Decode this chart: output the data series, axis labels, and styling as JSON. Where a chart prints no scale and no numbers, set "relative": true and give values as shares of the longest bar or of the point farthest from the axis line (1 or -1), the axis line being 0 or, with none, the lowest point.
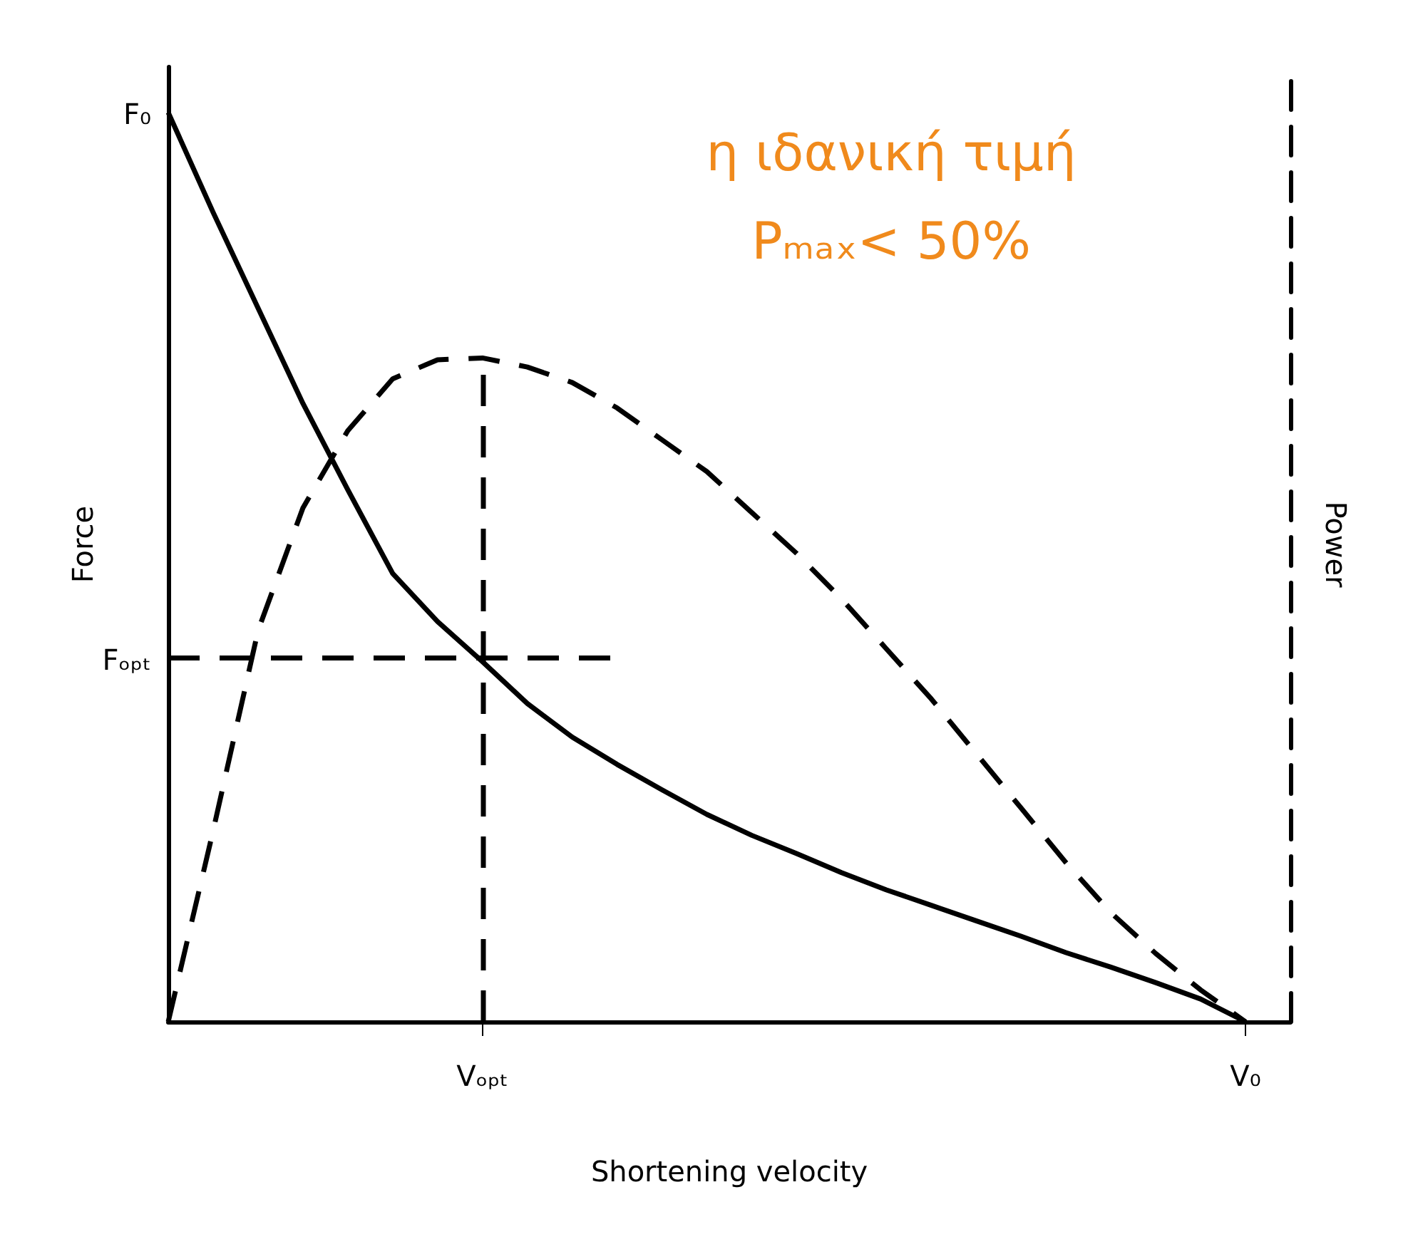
{
  "chart_data": {
    "type": "line",
    "relative": true,
    "xlabel": "Shortening velocity",
    "ylabel": "Force",
    "y2label": "Power",
    "categories": [
      null,
      null,
      null,
      null,
      null,
      null,
      null,
      "Vₒₚₜ",
      null,
      null,
      null,
      null,
      null,
      null,
      null,
      null,
      null,
      null,
      null,
      null,
      null,
      null,
      null,
      null,
      "V₀",
      null
    ],
    "grid": false,
    "marker": "none",
    "series": [
      {
        "color": "#000000",
        "line_style": "solid",
        "values": [
          1,
          0.89,
          0.785,
          0.68,
          0.585,
          0.493,
          0.44,
          0.396,
          0.35,
          0.313,
          0.283,
          0.255,
          0.228,
          0.205,
          0.185,
          0.164,
          0.145,
          0.128,
          0.111,
          0.094,
          0.076,
          0.06,
          0.043,
          0.025,
          0,
          null
        ]
      },
      {
        "color": "#000000",
        "line_style": "dashed",
        "values": [
          0,
          0.21,
          0.43,
          0.565,
          0.65,
          0.707,
          0.728,
          0.73,
          0.72,
          0.703,
          0.675,
          0.64,
          0.605,
          0.56,
          0.515,
          0.465,
          0.41,
          0.355,
          0.295,
          0.235,
          0.175,
          0.12,
          0.075,
          0.035,
          0,
          null
        ]
      },
      {
        "color": "#000000",
        "line_style": "dashed",
        "values": [
          0.4,
          0.4,
          0.4,
          0.4,
          0.4,
          0.4,
          0.4,
          0.4,
          0.4,
          0.4,
          0.4,
          null,
          null,
          null,
          null,
          null,
          null,
          null,
          null,
          null,
          null,
          null,
          null,
          null,
          null,
          null
        ]
      }
    ],
    "ref_lines": [
      {
        "axis": "x",
        "value": "Vₒₚₜ",
        "line_style": "dashed",
        "color": "#000000"
      }
    ],
    "annotations": [
      "F₀",
      "Fₒₚₜ",
      "η ιδανική τιμή",
      "Pₘₐₓ< 50%"
    ]
  }
}
